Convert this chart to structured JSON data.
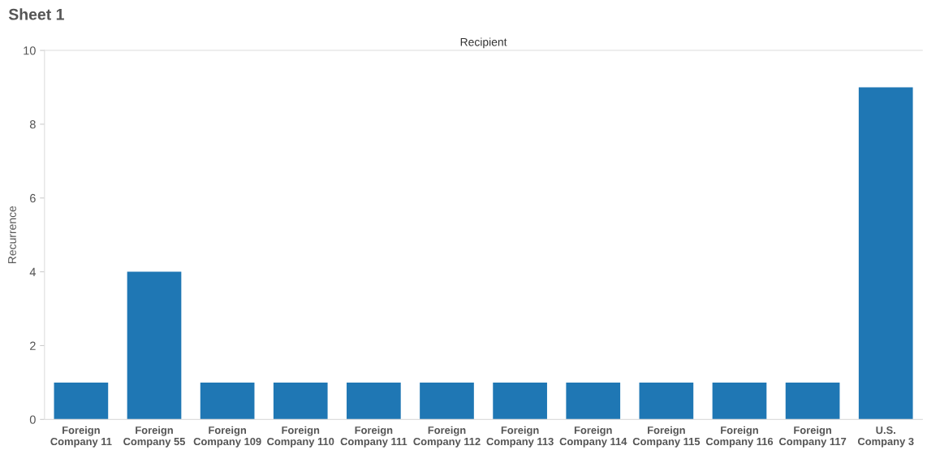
{
  "chart_data": {
    "type": "bar",
    "title": "Sheet 1",
    "xlabel": "Recipient",
    "ylabel": "Recurrence",
    "categories": [
      "Foreign Company 11",
      "Foreign Company 55",
      "Foreign Company 109",
      "Foreign Company 110",
      "Foreign Company 111",
      "Foreign Company 112",
      "Foreign Company 113",
      "Foreign Company 114",
      "Foreign Company 115",
      "Foreign Company 116",
      "Foreign Company 117",
      "U.S. Company 3"
    ],
    "values": [
      1,
      4,
      1,
      1,
      1,
      1,
      1,
      1,
      1,
      1,
      1,
      9
    ],
    "color": "#1f77b4",
    "ylim": [
      0,
      10
    ],
    "yticks": [
      0,
      2,
      4,
      6,
      8,
      10
    ],
    "grid": false
  }
}
